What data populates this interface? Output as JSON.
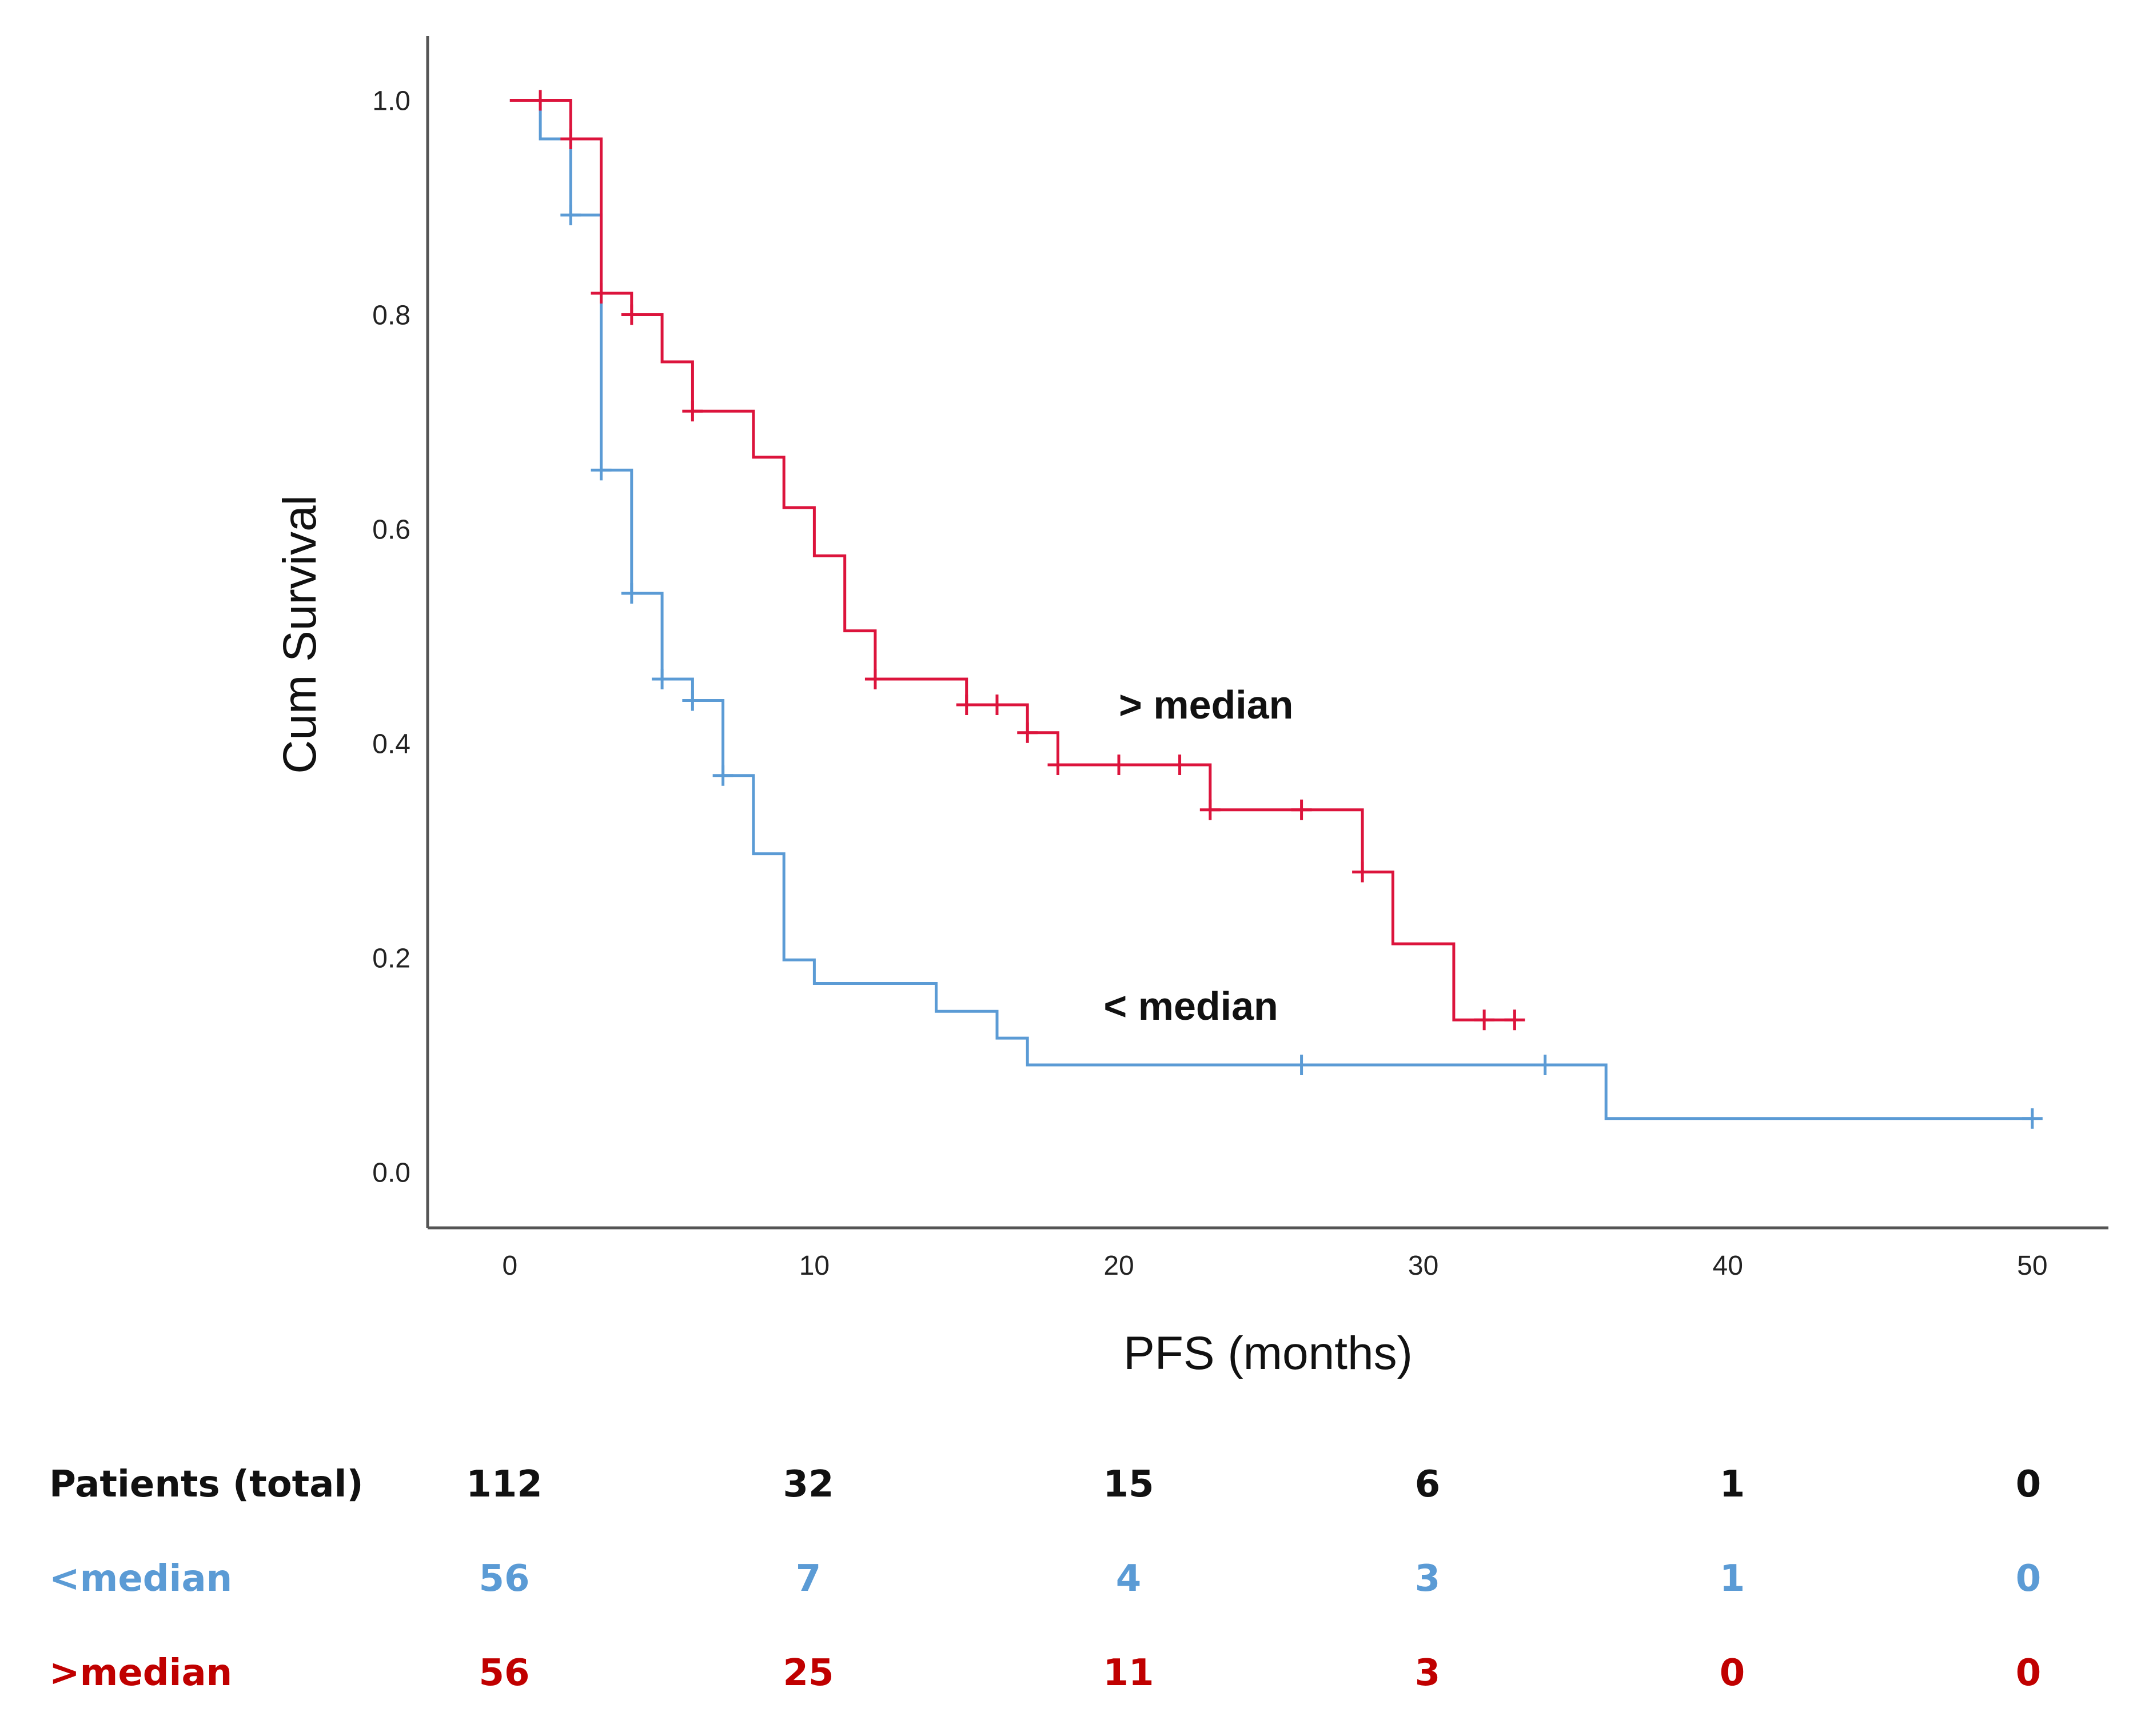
{
  "chart_data": {
    "type": "line",
    "subtype": "kaplan-meier",
    "xlabel": "PFS (months)",
    "ylabel": "Cum Survival",
    "xlim": [
      -2.7,
      52.5
    ],
    "ylim": [
      -0.052,
      1.06
    ],
    "xticks": [
      0,
      10,
      20,
      30,
      40,
      50
    ],
    "yticks": [
      "0.0",
      "0.2",
      "0.4",
      "0.6",
      "0.8",
      "1.0"
    ],
    "grid": false,
    "series": [
      {
        "name": "< median",
        "color": "#5b9bd5",
        "annotation": "< median",
        "annotation_at": [
          19.5,
          0.155
        ],
        "steps": [
          [
            0,
            1.0
          ],
          [
            1,
            0.964
          ],
          [
            2,
            0.893
          ],
          [
            3,
            0.655
          ],
          [
            4,
            0.54
          ],
          [
            5,
            0.46
          ],
          [
            6,
            0.44
          ],
          [
            7,
            0.37
          ],
          [
            8,
            0.297
          ],
          [
            9,
            0.198
          ],
          [
            10,
            0.176
          ],
          [
            14,
            0.15
          ],
          [
            16,
            0.125
          ],
          [
            17,
            0.1
          ],
          [
            36,
            0.05
          ],
          [
            50,
            0.05
          ]
        ],
        "censored": [
          [
            2,
            0.893
          ],
          [
            3,
            0.655
          ],
          [
            4,
            0.54
          ],
          [
            5,
            0.46
          ],
          [
            6,
            0.44
          ],
          [
            7,
            0.37
          ],
          [
            26,
            0.1
          ],
          [
            34,
            0.1
          ],
          [
            50,
            0.05
          ]
        ]
      },
      {
        "name": "> median",
        "color": "#dc143c",
        "annotation": "> median",
        "annotation_at": [
          20,
          0.436
        ],
        "steps": [
          [
            0,
            1.0
          ],
          [
            2,
            0.964
          ],
          [
            3,
            0.82
          ],
          [
            4,
            0.8
          ],
          [
            5,
            0.756
          ],
          [
            6,
            0.71
          ],
          [
            8,
            0.667
          ],
          [
            9,
            0.62
          ],
          [
            10,
            0.575
          ],
          [
            11,
            0.505
          ],
          [
            12,
            0.46
          ],
          [
            15,
            0.436
          ],
          [
            17,
            0.41
          ],
          [
            18,
            0.38
          ],
          [
            23,
            0.338
          ],
          [
            28,
            0.28
          ],
          [
            29,
            0.213
          ],
          [
            31,
            0.142
          ],
          [
            33,
            0.142
          ]
        ],
        "censored": [
          [
            1,
            1.0
          ],
          [
            2,
            0.964
          ],
          [
            3,
            0.82
          ],
          [
            4,
            0.8
          ],
          [
            6,
            0.71
          ],
          [
            12,
            0.46
          ],
          [
            15,
            0.436
          ],
          [
            16,
            0.436
          ],
          [
            17,
            0.41
          ],
          [
            18,
            0.38
          ],
          [
            20,
            0.38
          ],
          [
            22,
            0.38
          ],
          [
            23,
            0.338
          ],
          [
            26,
            0.338
          ],
          [
            28,
            0.28
          ],
          [
            32,
            0.142
          ],
          [
            33,
            0.142
          ]
        ]
      }
    ]
  },
  "risk_table": {
    "rows": [
      {
        "label": "Patients (total)",
        "color": "#111111",
        "values": [
          "112",
          "32",
          "15",
          "6",
          "1",
          "0"
        ]
      },
      {
        "label": "<median",
        "color": "#5b9bd5",
        "values": [
          "56",
          "7",
          "4",
          "3",
          "1",
          "0"
        ]
      },
      {
        "label": ">median",
        "color": "#c00000",
        "values": [
          "56",
          "25",
          "11",
          "3",
          "0",
          "0"
        ]
      }
    ]
  }
}
